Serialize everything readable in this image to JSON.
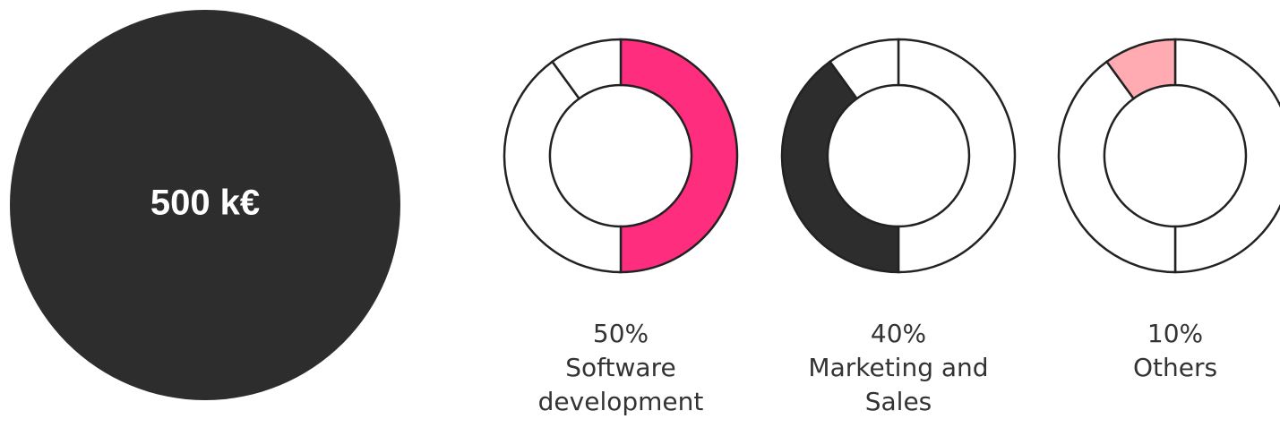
{
  "total_label": "500 k€",
  "chart_data": {
    "type": "donut",
    "categories": [
      "Software development",
      "Marketing and Sales",
      "Others"
    ],
    "values": [
      50,
      40,
      10
    ],
    "value_labels": [
      "50%",
      "40%",
      "10%"
    ],
    "colors": [
      "#ff2d7e",
      "#2d2d2d",
      "#ffabb1"
    ]
  }
}
